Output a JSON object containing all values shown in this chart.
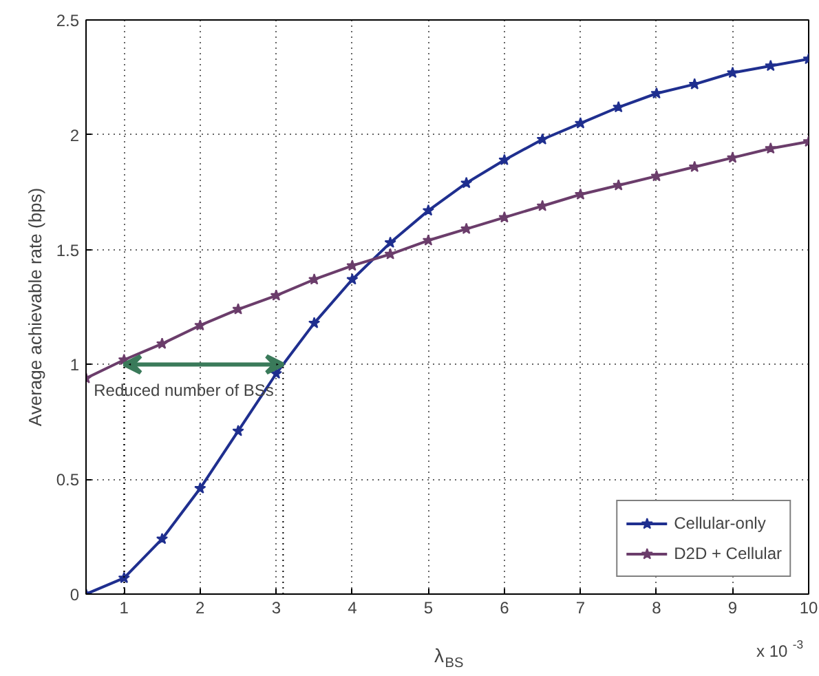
{
  "chart_data": {
    "type": "line",
    "xlabel": "λ$_{BS}$",
    "ylabel": "Average achievable rate (bps)",
    "xlim": [
      0.5,
      10
    ],
    "ylim": [
      0,
      2.5
    ],
    "xticks": [
      1,
      2,
      3,
      4,
      5,
      6,
      7,
      8,
      9,
      10
    ],
    "yticks": [
      0,
      0.5,
      1,
      1.5,
      2,
      2.5
    ],
    "x": [
      0.5,
      1,
      1.5,
      2,
      2.5,
      3,
      3.5,
      4,
      4.5,
      5,
      5.5,
      6,
      6.5,
      7,
      7.5,
      8,
      8.5,
      9,
      9.5,
      10
    ],
    "series": [
      {
        "name": "Cellular-only",
        "color": "#1f2f8f",
        "values": [
          0,
          0.07,
          0.24,
          0.46,
          0.71,
          0.96,
          1.18,
          1.37,
          1.53,
          1.67,
          1.79,
          1.89,
          1.98,
          2.05,
          2.12,
          2.18,
          2.22,
          2.27,
          2.3,
          2.33
        ]
      },
      {
        "name": "D2D + Cellular",
        "color": "#6b3d6b",
        "values": [
          0.94,
          1.02,
          1.09,
          1.17,
          1.24,
          1.3,
          1.37,
          1.43,
          1.48,
          1.54,
          1.59,
          1.64,
          1.69,
          1.74,
          1.78,
          1.82,
          1.86,
          1.9,
          1.94,
          1.97
        ]
      }
    ],
    "annotations": [
      {
        "text": "Reduced number of BSs",
        "x": 1,
        "y": 1
      },
      "x 10$^{-3}$"
    ],
    "grid": true,
    "legend": "bottom right",
    "marker": "star",
    "line_style": "solid"
  }
}
